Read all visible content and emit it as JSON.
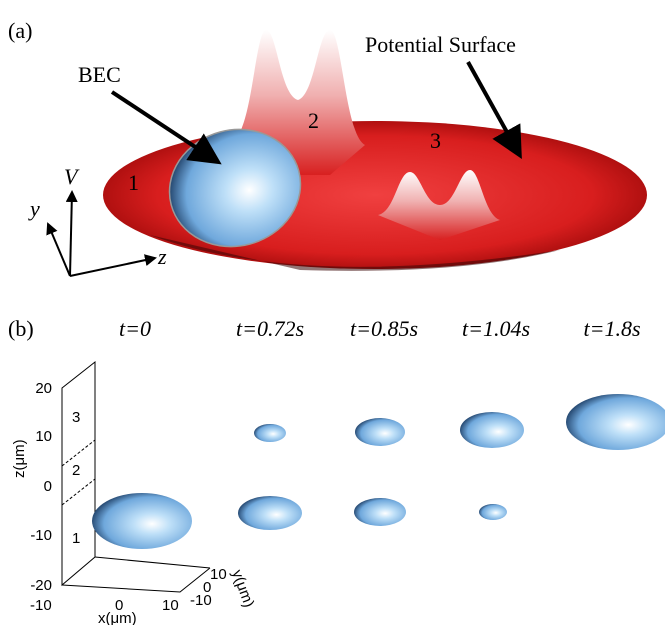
{
  "panel_a": {
    "label": "(a)",
    "bec_label": "BEC",
    "surface_label": "Potential Surface",
    "regions": [
      "1",
      "2",
      "3"
    ],
    "axes": [
      "V",
      "y",
      "z"
    ]
  },
  "panel_b": {
    "label": "(b)",
    "times": [
      "t=0",
      "t=0.72s",
      "t=0.85s",
      "t=1.04s",
      "t=1.8s"
    ],
    "z_ticks": [
      "20",
      "10",
      "0",
      "-10",
      "-20"
    ],
    "x_ticks": [
      "-10",
      "0",
      "10"
    ],
    "y_ticks": [
      "10",
      "0",
      "-10"
    ],
    "z_label": "z(μm)",
    "x_label": "x(μm)",
    "y_label": "y(μm)",
    "regions": [
      "1",
      "2",
      "3"
    ]
  }
}
